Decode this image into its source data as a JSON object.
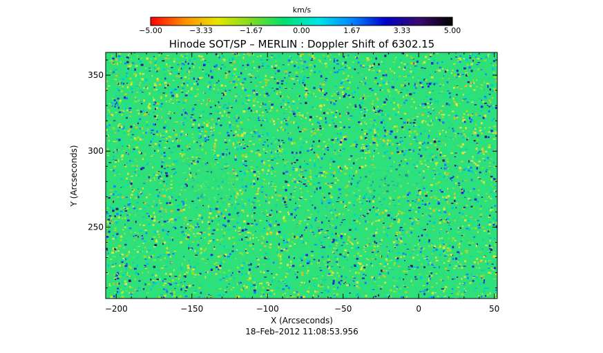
{
  "chart_data": {
    "type": "heatmap",
    "title": "Hinode SOT/SP – MERLIN : Doppler Shift of 6302.15",
    "xlabel": "X (Arcseconds)",
    "ylabel": "Y (Arcseconds)",
    "xlim": [
      -207,
      52
    ],
    "ylim": [
      203,
      365
    ],
    "xticks": [
      -200,
      -150,
      -100,
      -50,
      0,
      50
    ],
    "xtick_labels": [
      "−200",
      "−150",
      "−100",
      "−50",
      "0",
      "50"
    ],
    "yticks": [
      250,
      300,
      350
    ],
    "ytick_labels": [
      "250",
      "300",
      "350"
    ],
    "grid": false,
    "colorbar": {
      "label": "km/s",
      "range": [
        -5.0,
        5.0
      ],
      "ticks": [
        -5.0,
        -3.33,
        -1.67,
        0.0,
        1.67,
        3.33,
        5.0
      ],
      "tick_labels": [
        "−5.00",
        "−3.33",
        "−1.67",
        "0.00",
        "1.67",
        "3.33",
        "5.00"
      ],
      "colormap": [
        "#ff0000",
        "#ff8c00",
        "#e6e600",
        "#7ddc1f",
        "#00e070",
        "#00e6e6",
        "#0088ff",
        "#0000cc",
        "#3a0a6e",
        "#000000"
      ]
    },
    "timestamp": "18–Feb–2012 11:08:53.956"
  }
}
